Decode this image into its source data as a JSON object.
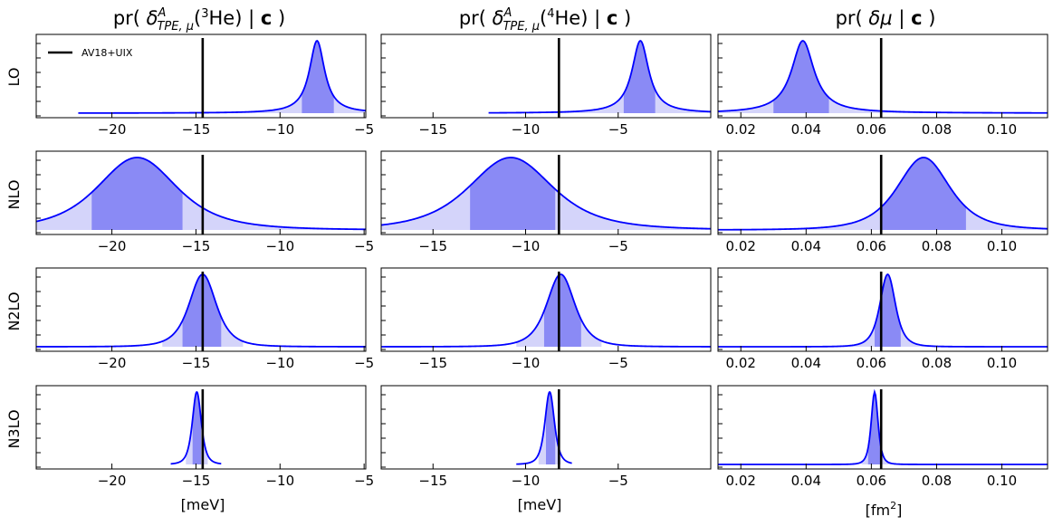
{
  "chart_data": {
    "type": "line",
    "description_kind": "posterior densities",
    "colors": {
      "curve": "#0000ff",
      "fill_68": "#8a8af5",
      "fill_95": "#d4d4fa",
      "reference": "#000000"
    },
    "legend": {
      "label": "AV18+UIX",
      "placement": "top-left"
    },
    "rows": [
      "LO",
      "NLO",
      "N2LO",
      "N3LO"
    ],
    "columns": [
      {
        "key": "he3",
        "title_parts": {
          "pre": "pr( ",
          "delta": "δ",
          "sup_A": "A",
          "sub": "TPE, μ",
          "paren_open": "(",
          "iso_sup": "3",
          "iso": "He)",
          "bar": " | ",
          "c": "c",
          "post": " )"
        },
        "xlabel": "[meV]",
        "xlim": [
          -24.5,
          -4.9
        ],
        "ticks": [
          -20,
          -15,
          -10,
          -5
        ],
        "tick_labels": [
          "−20",
          "−15",
          "−10",
          "−5"
        ],
        "reference": -14.6,
        "panels": [
          {
            "order": "LO",
            "mode": -7.8,
            "width": 0.55,
            "shape": "lorentz",
            "support": [
              -22.0,
              -4.9
            ],
            "band68": [
              -8.7,
              -6.8
            ],
            "band95": [
              -22.0,
              -4.9
            ]
          },
          {
            "order": "NLO",
            "mode": -18.5,
            "width": 2.5,
            "shape": "student",
            "support": [
              -24.5,
              -4.9
            ],
            "band68": [
              -21.2,
              -15.8
            ],
            "band95": [
              -24.5,
              -4.9
            ]
          },
          {
            "order": "N2LO",
            "mode": -14.6,
            "width": 0.85,
            "shape": "student",
            "support": [
              -24.5,
              -4.9
            ],
            "band68": [
              -15.8,
              -13.5
            ],
            "band95": [
              -17.0,
              -12.2
            ]
          },
          {
            "order": "N3LO",
            "mode": -14.95,
            "width": 0.28,
            "shape": "student",
            "support": [
              -16.5,
              -13.5
            ],
            "band68": [
              -15.2,
              -14.7
            ],
            "band95": [
              -15.6,
              -14.3
            ]
          }
        ]
      },
      {
        "key": "he4",
        "title_parts": {
          "pre": "pr( ",
          "delta": "δ",
          "sup_A": "A",
          "sub": "TPE, μ",
          "paren_open": "(",
          "iso_sup": "4",
          "iso": "He)",
          "bar": " | ",
          "c": "c",
          "post": " )"
        },
        "xlabel": "[meV]",
        "xlim": [
          -17.8,
          0.0
        ],
        "ticks": [
          -15,
          -10,
          -5
        ],
        "tick_labels": [
          "−15",
          "−10",
          "−5"
        ],
        "reference": -8.2,
        "panels": [
          {
            "order": "LO",
            "mode": -3.8,
            "width": 0.55,
            "shape": "lorentz",
            "support": [
              -12.0,
              0.0
            ],
            "band68": [
              -4.7,
              -3.0
            ],
            "band95": [
              -12.0,
              0.0
            ]
          },
          {
            "order": "NLO",
            "mode": -10.8,
            "width": 2.4,
            "shape": "student",
            "support": [
              -17.8,
              0.0
            ],
            "band68": [
              -13.0,
              -8.4
            ],
            "band95": [
              -17.8,
              0.0
            ]
          },
          {
            "order": "N2LO",
            "mode": -8.1,
            "width": 0.8,
            "shape": "student",
            "support": [
              -17.8,
              0.0
            ],
            "band68": [
              -9.0,
              -7.0
            ],
            "band95": [
              -10.5,
              -5.9
            ]
          },
          {
            "order": "N3LO",
            "mode": -8.7,
            "width": 0.27,
            "shape": "student",
            "support": [
              -10.5,
              -7.5
            ],
            "band68": [
              -8.9,
              -8.4
            ],
            "band95": [
              -9.3,
              -8.1
            ]
          }
        ]
      },
      {
        "key": "mu",
        "title_parts": {
          "pre": "pr( ",
          "delta": "δμ",
          "bar": " | ",
          "c": "c",
          "post": " )"
        },
        "xlabel_parts": {
          "pre": "[fm",
          "sup": "2",
          "post": "]"
        },
        "xlim": [
          0.013,
          0.114
        ],
        "ticks": [
          0.02,
          0.04,
          0.06,
          0.08,
          0.1
        ],
        "tick_labels": [
          "0.02",
          "0.04",
          "0.06",
          "0.08",
          "0.10"
        ],
        "reference": 0.063,
        "panels": [
          {
            "order": "LO",
            "mode": 0.039,
            "width": 0.0042,
            "shape": "lorentz",
            "support": [
              0.013,
              0.114
            ],
            "band68": [
              0.03,
              0.047
            ],
            "band95": [
              0.013,
              0.114
            ]
          },
          {
            "order": "NLO",
            "mode": 0.076,
            "width": 0.0085,
            "shape": "student",
            "support": [
              0.013,
              0.114
            ],
            "band68": [
              0.063,
              0.089
            ],
            "band95": [
              0.013,
              0.114
            ]
          },
          {
            "order": "N2LO",
            "mode": 0.065,
            "width": 0.0025,
            "shape": "student",
            "support": [
              0.013,
              0.114
            ],
            "band68": [
              0.061,
              0.069
            ],
            "band95": [
              0.054,
              0.077
            ]
          },
          {
            "order": "N3LO",
            "mode": 0.061,
            "width": 0.0011,
            "shape": "student",
            "support": [
              0.013,
              0.114
            ],
            "band68": [
              0.059,
              0.063
            ],
            "band95": [
              0.057,
              0.066
            ]
          }
        ]
      }
    ]
  }
}
